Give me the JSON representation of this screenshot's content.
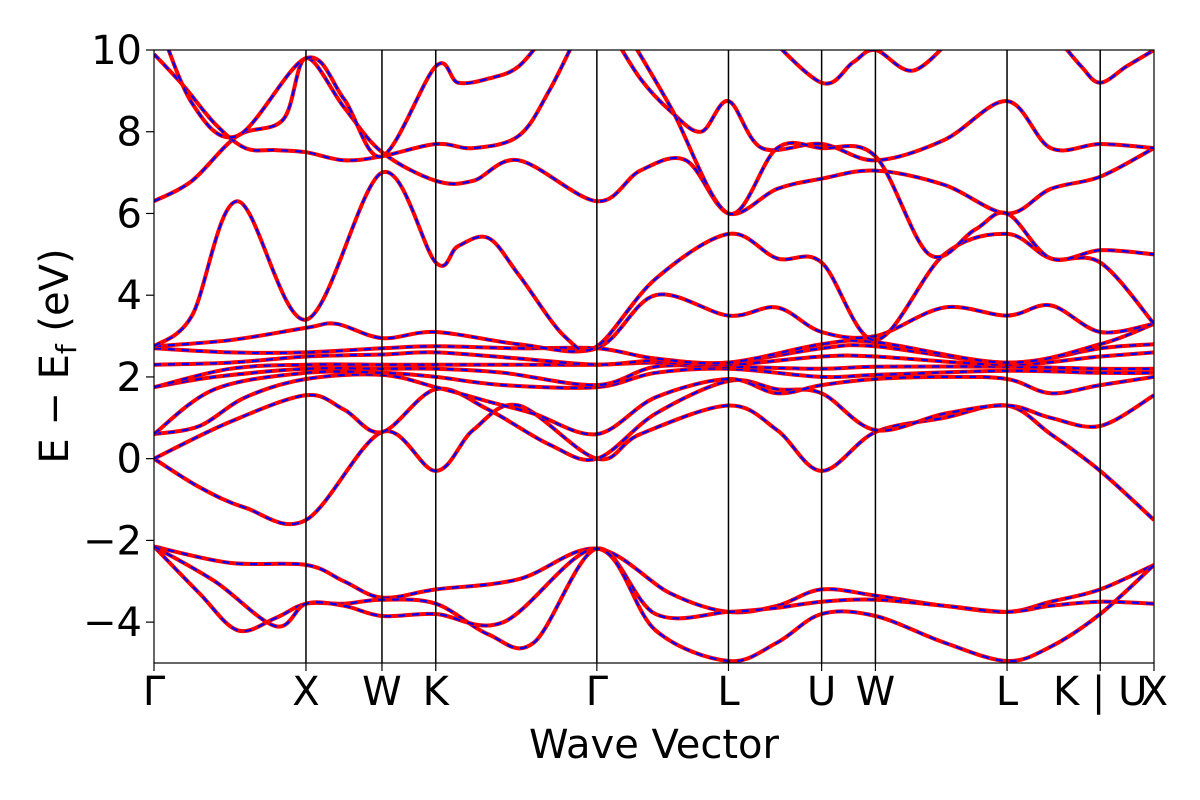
{
  "chart_data": {
    "type": "line",
    "title": "",
    "xlabel": "Wave Vector",
    "ylabel": "E − E",
    "ylabel_sub": "f",
    "ylabel_unit": " (eV)",
    "ylim": [
      -5,
      10
    ],
    "yticks": [
      -4,
      -2,
      0,
      2,
      4,
      6,
      8,
      10
    ],
    "ytick_labels": [
      "−4",
      "−2",
      "0",
      "2",
      "4",
      "6",
      "8",
      "10"
    ],
    "grid": false,
    "legend": "none",
    "kpath": {
      "labels": [
        "Γ",
        "X",
        "W",
        "K",
        "Γ",
        "L",
        "U",
        "W",
        "L",
        "K | U",
        "X"
      ],
      "positions": [
        0,
        1,
        1.5,
        1.854,
        2.914,
        3.78,
        4.393,
        4.747,
        5.613,
        6.226,
        6.58
      ]
    },
    "style": {
      "line_color": "#ff0000",
      "dash_color": "#0000ff",
      "kpoint_line_color": "#000000"
    },
    "series": [
      {
        "x": [
          0,
          0.5,
          1,
          1.25,
          1.5,
          1.854,
          2.4,
          2.914,
          3.4,
          3.78,
          4.1,
          4.393,
          4.747,
          5.2,
          5.613,
          5.9,
          6.226,
          6.58
        ],
        "values": [
          -2.15,
          -2.55,
          -2.6,
          -3.0,
          -3.4,
          -3.2,
          -2.95,
          -2.2,
          -3.3,
          -3.75,
          -3.6,
          -3.2,
          -3.35,
          -3.6,
          -3.75,
          -3.5,
          -3.2,
          -2.6
        ]
      },
      {
        "x": [
          0,
          0.3,
          0.55,
          0.8,
          1,
          1.25,
          1.5,
          1.854,
          2.2,
          2.5,
          2.914,
          3.3,
          3.78,
          4.1,
          4.393,
          4.747,
          5.2,
          5.613,
          5.9,
          6.226,
          6.58
        ],
        "values": [
          -2.15,
          -3.3,
          -4.2,
          -3.9,
          -3.55,
          -3.55,
          -3.45,
          -3.55,
          -4.3,
          -4.5,
          -2.2,
          -3.8,
          -3.75,
          -3.65,
          -3.5,
          -3.45,
          -3.6,
          -3.75,
          -3.6,
          -3.5,
          -3.55
        ]
      },
      {
        "x": [
          0,
          0.4,
          0.8,
          1,
          1.25,
          1.5,
          1.854,
          2.3,
          2.914,
          3.3,
          3.78,
          4.1,
          4.393,
          4.747,
          5.2,
          5.613,
          5.9,
          6.226,
          6.58
        ],
        "values": [
          -2.15,
          -3.0,
          -4.1,
          -3.55,
          -3.6,
          -3.85,
          -3.8,
          -4.0,
          -2.2,
          -4.2,
          -4.95,
          -4.5,
          -3.8,
          -3.85,
          -4.5,
          -4.95,
          -4.6,
          -3.8,
          -2.6
        ]
      },
      {
        "x": [
          0,
          0.3,
          0.6,
          1,
          1.5,
          1.854,
          2.1,
          2.4,
          2.914,
          3.2,
          3.78,
          4.1,
          4.393,
          4.747,
          5.2,
          5.613,
          5.9,
          6.226,
          6.58
        ],
        "values": [
          0.0,
          -0.7,
          -1.2,
          -1.5,
          0.65,
          -0.3,
          0.7,
          1.3,
          0.0,
          0.6,
          1.3,
          0.7,
          -0.3,
          0.65,
          1.0,
          1.3,
          0.6,
          -0.3,
          -1.5
        ]
      },
      {
        "x": [
          0,
          0.5,
          1,
          1.25,
          1.5,
          1.854,
          2.2,
          2.6,
          2.914,
          3.3,
          3.78,
          4.1,
          4.393,
          4.747,
          5.2,
          5.613,
          5.9,
          6.226,
          6.58
        ],
        "values": [
          0.0,
          0.9,
          1.55,
          1.2,
          0.65,
          1.7,
          1.2,
          0.35,
          0.0,
          1.1,
          1.9,
          1.7,
          1.6,
          0.7,
          1.1,
          1.3,
          1.0,
          0.8,
          1.55
        ]
      },
      {
        "x": [
          0,
          0.3,
          0.6,
          1,
          1.5,
          1.854,
          2.2,
          2.5,
          2.914,
          3.3,
          3.78,
          4.1,
          4.393,
          4.747,
          5.2,
          5.613,
          5.9,
          6.226,
          6.58
        ],
        "values": [
          0.6,
          0.8,
          1.5,
          1.95,
          2.05,
          1.75,
          1.4,
          1.1,
          0.6,
          1.5,
          1.95,
          1.6,
          1.8,
          1.95,
          2.0,
          1.95,
          1.6,
          1.8,
          2.0
        ]
      },
      {
        "x": [
          0,
          0.4,
          1,
          1.5,
          1.854,
          2.3,
          2.914,
          3.3,
          3.78,
          4.393,
          4.747,
          5.613,
          6.226,
          6.58
        ],
        "values": [
          0.6,
          1.7,
          2.1,
          2.1,
          2.0,
          1.8,
          1.75,
          2.1,
          2.2,
          2.0,
          2.05,
          2.15,
          2.1,
          2.1
        ]
      },
      {
        "x": [
          0,
          0.4,
          1,
          1.5,
          1.854,
          2.3,
          2.914,
          3.3,
          3.78,
          4.393,
          4.747,
          5.613,
          6.226,
          6.58
        ],
        "values": [
          1.75,
          2.0,
          2.2,
          2.2,
          2.2,
          2.1,
          1.8,
          2.25,
          2.25,
          2.2,
          2.25,
          2.25,
          2.2,
          2.2
        ]
      },
      {
        "x": [
          0,
          0.5,
          1,
          1.5,
          1.854,
          2.4,
          2.914,
          3.3,
          3.78,
          4.393,
          4.747,
          5.613,
          6.226,
          6.58
        ],
        "values": [
          1.75,
          2.2,
          2.3,
          2.3,
          2.3,
          2.3,
          2.3,
          2.35,
          2.3,
          2.5,
          2.5,
          2.3,
          2.5,
          2.6
        ]
      },
      {
        "x": [
          0,
          0.5,
          1,
          1.5,
          1.854,
          2.4,
          2.914,
          3.3,
          3.78,
          4.393,
          4.747,
          5.613,
          6.226,
          6.58
        ],
        "values": [
          2.3,
          2.35,
          2.5,
          2.55,
          2.6,
          2.45,
          2.3,
          2.4,
          2.35,
          2.7,
          2.75,
          2.35,
          2.7,
          2.8
        ]
      },
      {
        "x": [
          0,
          0.5,
          1,
          1.5,
          1.854,
          2.4,
          2.914,
          3.3,
          3.78,
          4.393,
          4.747,
          5.613,
          6.226,
          6.58
        ],
        "values": [
          2.7,
          2.6,
          2.6,
          2.7,
          2.75,
          2.7,
          2.7,
          2.45,
          2.35,
          2.8,
          2.85,
          2.35,
          2.8,
          3.3
        ]
      },
      {
        "x": [
          0,
          0.5,
          1,
          1.2,
          1.5,
          1.854,
          2.4,
          2.914,
          3.3,
          3.78,
          4.1,
          4.393,
          4.747,
          5.2,
          5.613,
          5.9,
          6.226,
          6.58
        ],
        "values": [
          2.75,
          2.9,
          3.2,
          3.3,
          2.95,
          3.1,
          2.8,
          2.7,
          4.0,
          3.5,
          3.7,
          3.1,
          3.0,
          3.7,
          3.5,
          3.75,
          3.1,
          3.3
        ]
      },
      {
        "x": [
          0,
          0.25,
          0.55,
          1,
          1.5,
          1.854,
          2.0,
          2.2,
          2.4,
          2.7,
          2.914,
          3.3,
          3.78,
          4.1,
          4.393,
          4.747,
          5.2,
          5.613,
          5.9,
          6.226,
          6.58
        ],
        "values": [
          2.75,
          3.5,
          6.3,
          3.4,
          7.0,
          4.8,
          5.2,
          5.4,
          4.5,
          3.0,
          2.75,
          4.4,
          5.5,
          4.9,
          4.8,
          2.9,
          5.0,
          5.5,
          4.9,
          4.8,
          3.3
        ]
      },
      {
        "x": [
          0,
          0.25,
          0.55,
          0.85,
          1,
          1.25,
          1.5,
          1.854,
          2.1,
          2.4,
          2.914,
          3.2,
          3.5,
          3.78,
          4.1,
          4.393,
          4.747,
          5.2,
          5.613,
          5.9,
          6.226,
          6.58
        ],
        "values": [
          6.3,
          6.8,
          7.9,
          8.3,
          9.8,
          8.6,
          7.5,
          6.8,
          6.8,
          7.3,
          6.3,
          7.05,
          7.3,
          6.0,
          6.6,
          6.85,
          7.05,
          6.7,
          6.0,
          6.6,
          6.9,
          7.6
        ]
      },
      {
        "x": [
          0,
          0.2,
          0.4,
          0.6,
          0.8,
          1,
          1.25,
          1.5,
          1.854,
          2.1,
          2.4,
          2.6,
          2.8
        ],
        "values": [
          9.9,
          9.1,
          8.2,
          7.6,
          7.55,
          7.5,
          7.3,
          7.4,
          7.7,
          7.6,
          7.9,
          9.0,
          10.5
        ]
      },
      {
        "x": [
          0,
          0.25,
          0.55,
          1,
          1.25,
          1.5,
          1.854,
          2.0,
          2.2,
          2.4,
          2.6
        ],
        "values": [
          11.0,
          8.7,
          7.9,
          9.8,
          8.8,
          7.4,
          9.6,
          9.2,
          9.3,
          9.6,
          10.5
        ]
      },
      {
        "x": [
          3.0,
          3.2,
          3.4,
          3.6,
          3.78,
          4.0,
          4.393,
          4.747,
          5.2,
          5.613,
          5.9,
          6.226,
          6.58
        ],
        "values": [
          10.5,
          9.3,
          8.5,
          8.0,
          8.75,
          7.6,
          7.7,
          7.3,
          7.8,
          8.75,
          7.6,
          7.7,
          7.6
        ]
      },
      {
        "x": [
          3.1,
          3.4,
          3.78,
          4.1,
          4.393,
          4.747,
          5.1,
          5.4,
          5.613,
          5.9,
          6.226,
          6.58
        ],
        "values": [
          10.5,
          8.6,
          6.0,
          7.6,
          7.6,
          7.4,
          5.0,
          5.6,
          6.0,
          4.9,
          5.1,
          5.0
        ]
      },
      {
        "x": [
          4.0,
          4.393,
          4.6,
          4.747,
          5.0,
          5.3
        ],
        "values": [
          10.5,
          9.2,
          9.7,
          10.0,
          9.5,
          10.5
        ]
      },
      {
        "x": [
          5.9,
          6.1,
          6.226,
          6.4,
          6.58
        ],
        "values": [
          10.5,
          9.6,
          9.2,
          9.6,
          10.0
        ]
      }
    ]
  }
}
